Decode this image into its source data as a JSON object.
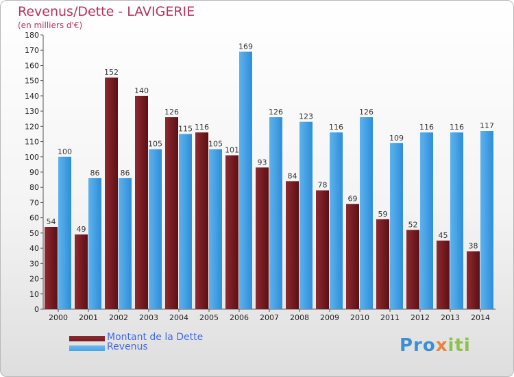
{
  "title": "Revenus/Dette - LAVIGERIE",
  "subtitle": "(en milliers d'€)",
  "colors": {
    "dette": "#7a1e22",
    "revenus": "#49a5e6",
    "title": "#b5345c",
    "legend_text": "#4169e1"
  },
  "legend": {
    "dette_label": "Montant de la Dette",
    "revenus_label": "Revenus"
  },
  "logo": {
    "part1": "Pro",
    "part2": "x",
    "part3": "iti"
  },
  "chart_data": {
    "type": "bar",
    "title": "Revenus/Dette - LAVIGERIE",
    "subtitle": "(en milliers d'€)",
    "categories": [
      "2000",
      "2001",
      "2002",
      "2003",
      "2004",
      "2005",
      "2006",
      "2007",
      "2008",
      "2009",
      "2010",
      "2011",
      "2012",
      "2013",
      "2014"
    ],
    "series": [
      {
        "name": "Montant de la Dette",
        "values": [
          54,
          49,
          152,
          140,
          126,
          116,
          101,
          93,
          84,
          78,
          69,
          59,
          52,
          45,
          38
        ]
      },
      {
        "name": "Revenus",
        "values": [
          100,
          86,
          86,
          105,
          115,
          105,
          169,
          126,
          123,
          116,
          126,
          109,
          116,
          116,
          117
        ]
      }
    ],
    "ylim": [
      0,
      180
    ],
    "ytick_step": 10,
    "grid": false,
    "data_labels": true,
    "legend_position": "bottom-left"
  }
}
